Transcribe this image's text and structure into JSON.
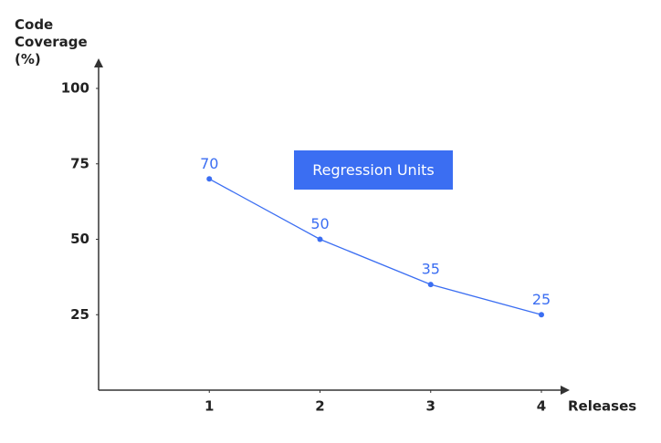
{
  "chart_data": {
    "type": "line",
    "y_label": "Code Coverage (%)",
    "x_label": "Releases",
    "x": [
      1,
      2,
      3,
      4
    ],
    "series": [
      {
        "name": "Regression Units",
        "color": "#3b6ef2",
        "values": [
          70,
          50,
          35,
          25
        ]
      }
    ],
    "xlim": [
      0,
      4
    ],
    "xticks": [
      1,
      2,
      3,
      4
    ],
    "ylim": [
      0,
      100
    ],
    "yticks": [
      25,
      50,
      75,
      100
    ],
    "grid": false
  }
}
